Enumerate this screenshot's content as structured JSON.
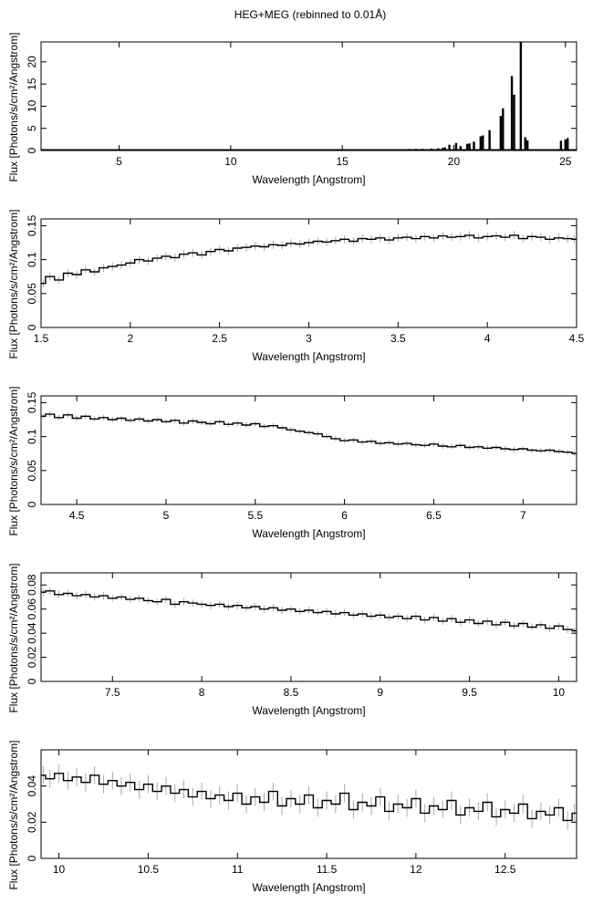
{
  "chart_data": {
    "title": "HEG+MEG (rebinned to 0.01Å)",
    "panels": [
      {
        "type": "histogram-lines",
        "xlabel": "Wavelength [Angstrom]",
        "ylabel": "Flux [Photons/s/cm²/Angstrom]",
        "xlim": [
          1.5,
          25.5
        ],
        "ylim": [
          0,
          24.5
        ],
        "xticks": [
          5,
          10,
          15,
          20,
          25
        ],
        "yticks": [
          0,
          5,
          10,
          15,
          20
        ],
        "continuum": 0.1,
        "lines": [
          [
            17.6,
            0.3
          ],
          [
            18.0,
            0.35
          ],
          [
            18.3,
            0.4
          ],
          [
            18.6,
            0.4
          ],
          [
            19.0,
            0.45
          ],
          [
            19.3,
            0.5
          ],
          [
            19.5,
            0.6
          ],
          [
            19.6,
            0.7
          ],
          [
            19.8,
            1.3
          ],
          [
            20.1,
            1.7
          ],
          [
            20.3,
            1.0
          ],
          [
            20.6,
            1.5
          ],
          [
            20.7,
            1.6
          ],
          [
            20.9,
            2.0
          ],
          [
            21.2,
            3.2
          ],
          [
            21.3,
            3.4
          ],
          [
            21.6,
            4.6
          ],
          [
            22.1,
            7.8
          ],
          [
            22.2,
            9.5
          ],
          [
            22.6,
            16.8
          ],
          [
            22.7,
            12.6
          ],
          [
            23.0,
            24.5
          ],
          [
            23.2,
            3.0
          ],
          [
            23.3,
            2.3
          ],
          [
            24.8,
            2.2
          ],
          [
            25.0,
            2.5
          ],
          [
            25.1,
            2.8
          ]
        ]
      },
      {
        "type": "histogram",
        "xlabel": "Wavelength [Angstrom]",
        "ylabel": "Flux [Photons/s/cm²/Angstrom]",
        "xlim": [
          1.5,
          4.5
        ],
        "ylim": [
          0,
          0.16
        ],
        "xticks": [
          1.5,
          2,
          2.5,
          3,
          3.5,
          4,
          4.5
        ],
        "yticks": [
          0,
          0.05,
          0.1,
          0.15
        ],
        "x_start": 1.5,
        "x_step": 0.05,
        "err": 0.006,
        "y": [
          0.065,
          0.075,
          0.07,
          0.08,
          0.078,
          0.085,
          0.082,
          0.088,
          0.09,
          0.092,
          0.095,
          0.1,
          0.098,
          0.102,
          0.105,
          0.103,
          0.108,
          0.11,
          0.107,
          0.112,
          0.115,
          0.113,
          0.117,
          0.118,
          0.12,
          0.119,
          0.122,
          0.121,
          0.124,
          0.123,
          0.125,
          0.127,
          0.126,
          0.128,
          0.13,
          0.127,
          0.131,
          0.13,
          0.132,
          0.129,
          0.132,
          0.133,
          0.131,
          0.134,
          0.132,
          0.135,
          0.133,
          0.134,
          0.136,
          0.132,
          0.134,
          0.135,
          0.133,
          0.136,
          0.131,
          0.134,
          0.133,
          0.13,
          0.132,
          0.131,
          0.13
        ]
      },
      {
        "type": "histogram",
        "xlabel": "Wavelength [Angstrom]",
        "ylabel": "Flux [Photons/s/cm²/Angstrom]",
        "xlim": [
          4.3,
          7.3
        ],
        "ylim": [
          0,
          0.16
        ],
        "xticks": [
          4.5,
          5,
          5.5,
          6,
          6.5,
          7
        ],
        "yticks": [
          0,
          0.05,
          0.1,
          0.15
        ],
        "x_start": 4.3,
        "x_step": 0.05,
        "err": 0.004,
        "y": [
          0.13,
          0.133,
          0.128,
          0.132,
          0.127,
          0.13,
          0.126,
          0.128,
          0.125,
          0.127,
          0.124,
          0.126,
          0.123,
          0.125,
          0.122,
          0.124,
          0.12,
          0.123,
          0.121,
          0.119,
          0.122,
          0.118,
          0.12,
          0.117,
          0.119,
          0.115,
          0.116,
          0.113,
          0.11,
          0.108,
          0.106,
          0.104,
          0.1,
          0.097,
          0.094,
          0.095,
          0.092,
          0.093,
          0.09,
          0.091,
          0.089,
          0.09,
          0.088,
          0.087,
          0.089,
          0.086,
          0.085,
          0.087,
          0.084,
          0.085,
          0.083,
          0.084,
          0.082,
          0.081,
          0.082,
          0.08,
          0.079,
          0.08,
          0.078,
          0.077,
          0.075
        ]
      },
      {
        "type": "histogram",
        "xlabel": "Wavelength [Angstrom]",
        "ylabel": "Flux [Photons/s/cm²/Angstrom]",
        "xlim": [
          7.1,
          10.1
        ],
        "ylim": [
          0,
          0.09
        ],
        "xticks": [
          7.5,
          8,
          8.5,
          9,
          9.5,
          10
        ],
        "yticks": [
          0,
          0.02,
          0.04,
          0.06,
          0.08
        ],
        "x_start": 7.1,
        "x_step": 0.05,
        "err": 0.003,
        "y": [
          0.074,
          0.075,
          0.072,
          0.073,
          0.071,
          0.072,
          0.07,
          0.071,
          0.069,
          0.07,
          0.068,
          0.069,
          0.067,
          0.066,
          0.068,
          0.064,
          0.066,
          0.065,
          0.064,
          0.063,
          0.064,
          0.062,
          0.063,
          0.061,
          0.062,
          0.06,
          0.061,
          0.059,
          0.06,
          0.058,
          0.059,
          0.057,
          0.058,
          0.056,
          0.057,
          0.055,
          0.056,
          0.054,
          0.055,
          0.053,
          0.054,
          0.052,
          0.054,
          0.051,
          0.053,
          0.05,
          0.052,
          0.049,
          0.051,
          0.048,
          0.05,
          0.047,
          0.049,
          0.046,
          0.048,
          0.045,
          0.047,
          0.044,
          0.046,
          0.043,
          0.042
        ]
      },
      {
        "type": "histogram",
        "xlabel": "Wavelength [Angstrom]",
        "ylabel": "Flux [Photons/s/cm²/Angstrom]",
        "xlim": [
          9.9,
          12.9
        ],
        "ylim": [
          0,
          0.06
        ],
        "xticks": [
          10,
          10.5,
          11,
          11.5,
          12,
          12.5
        ],
        "yticks": [
          0,
          0.02,
          0.04
        ],
        "x_start": 9.9,
        "x_step": 0.05,
        "err": 0.005,
        "y": [
          0.046,
          0.044,
          0.047,
          0.043,
          0.045,
          0.042,
          0.046,
          0.041,
          0.043,
          0.04,
          0.042,
          0.038,
          0.041,
          0.037,
          0.04,
          0.036,
          0.038,
          0.034,
          0.037,
          0.033,
          0.035,
          0.032,
          0.036,
          0.03,
          0.034,
          0.031,
          0.037,
          0.029,
          0.033,
          0.03,
          0.035,
          0.028,
          0.032,
          0.03,
          0.036,
          0.027,
          0.031,
          0.029,
          0.034,
          0.026,
          0.03,
          0.028,
          0.033,
          0.025,
          0.029,
          0.027,
          0.032,
          0.024,
          0.028,
          0.026,
          0.031,
          0.023,
          0.027,
          0.025,
          0.03,
          0.022,
          0.026,
          0.024,
          0.028,
          0.021,
          0.025
        ]
      }
    ]
  }
}
